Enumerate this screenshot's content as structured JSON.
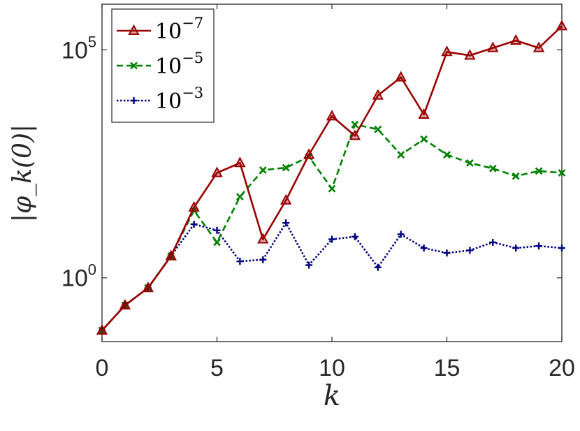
{
  "chart_data": {
    "type": "line",
    "xlabel": "k",
    "ylabel": "|φ_k(0)|",
    "y_scale": "log",
    "xlim": [
      0,
      20
    ],
    "ylim": [
      0.04,
      1000000
    ],
    "x_ticks": [
      0,
      5,
      10,
      15,
      20
    ],
    "x_tick_labels": [
      "0",
      "5",
      "10",
      "15",
      "20"
    ],
    "y_ticks": [
      1,
      100000
    ],
    "y_tick_labels": [
      {
        "base": "10",
        "exp": "0"
      },
      {
        "base": "10",
        "exp": "5"
      }
    ],
    "grid": false,
    "legend_position": "top-left",
    "x": [
      0,
      1,
      2,
      3,
      4,
      5,
      6,
      7,
      8,
      9,
      10,
      11,
      12,
      13,
      14,
      15,
      16,
      17,
      18,
      19,
      20
    ],
    "series": [
      {
        "name": {
          "base": "10",
          "exp": "−7"
        },
        "color": "#990000",
        "line_style": "solid",
        "marker": "triangle",
        "values": [
          0.07,
          0.25,
          0.6,
          3.0,
          35,
          200,
          330,
          7,
          50,
          500,
          3500,
          1300,
          10000,
          25000,
          3800,
          90000,
          75000,
          110000,
          160000,
          110000,
          330000
        ]
      },
      {
        "name": {
          "base": "10",
          "exp": "−5"
        },
        "color": "#008000",
        "line_style": "dashed",
        "marker": "x",
        "values": [
          0.07,
          0.25,
          0.6,
          3.0,
          30,
          6,
          60,
          230,
          260,
          450,
          90,
          2300,
          1800,
          500,
          1100,
          500,
          330,
          250,
          170,
          220,
          200
        ]
      },
      {
        "name": {
          "base": "10",
          "exp": "−3"
        },
        "color": "#00007f",
        "line_style": "dotted",
        "marker": "plus",
        "values": [
          0.07,
          0.25,
          0.6,
          3.0,
          15,
          11,
          2.3,
          2.5,
          16,
          1.9,
          7,
          8,
          1.7,
          9,
          4.5,
          3.5,
          4,
          6,
          4.5,
          5,
          4.5
        ]
      }
    ]
  }
}
